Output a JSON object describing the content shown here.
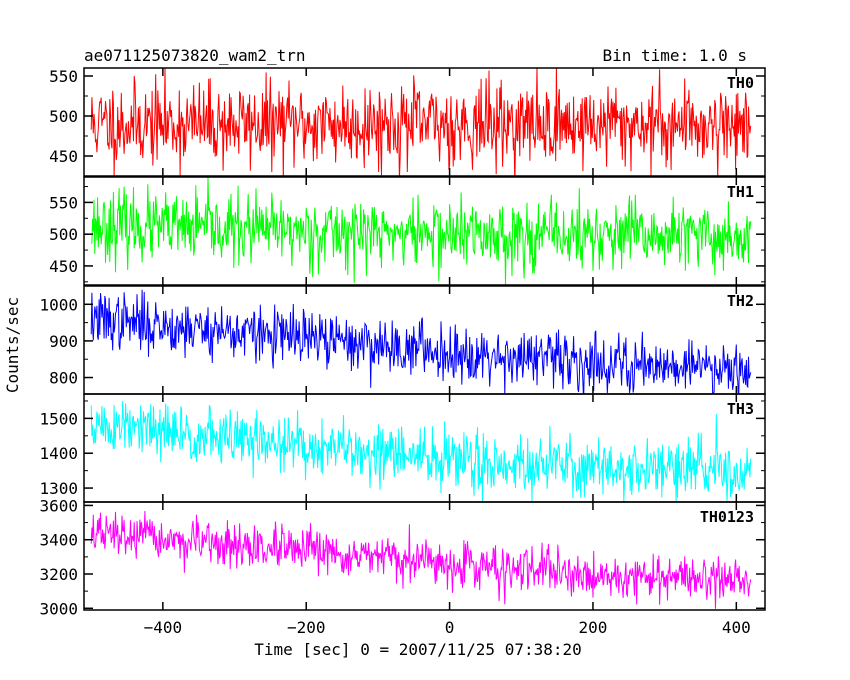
{
  "header": {
    "source_name": "ae071125073820_wam2_trn",
    "bin_time": "Bin time: 1.0 s"
  },
  "colors": {
    "TH0": "#ff0000",
    "TH1": "#00ff00",
    "TH2": "#0000ff",
    "TH3": "#00ffff",
    "TH0123": "#ff00ff"
  },
  "chart_data": {
    "type": "line",
    "xlabel": "Time [sec] 0 = 2007/11/25 07:38:20",
    "ylabel": "Counts/sec",
    "xlim": [
      -510,
      440
    ],
    "x_ticks": [
      -400,
      -200,
      0,
      200,
      400
    ],
    "x_tick_labels": [
      "−400",
      "−200",
      "0",
      "200",
      "400"
    ],
    "bin_time_s": 1.0,
    "x_range": [
      -500,
      420
    ],
    "panels": [
      {
        "name": "TH0",
        "ylim": [
          425,
          560
        ],
        "yticks": [
          450,
          500,
          550
        ],
        "trend": [
          [
            -500,
            490
          ],
          [
            420,
            490
          ]
        ],
        "noise_sigma": 26,
        "seed": 11
      },
      {
        "name": "TH1",
        "ylim": [
          420,
          590
        ],
        "yticks": [
          450,
          500,
          550
        ],
        "trend": [
          [
            -500,
            515
          ],
          [
            -400,
            510
          ],
          [
            0,
            500
          ],
          [
            420,
            495
          ]
        ],
        "noise_sigma": 27,
        "seed": 23
      },
      {
        "name": "TH2",
        "ylim": [
          755,
          1050
        ],
        "yticks": [
          800,
          900,
          1000
        ],
        "trend": [
          [
            -500,
            960
          ],
          [
            -300,
            925
          ],
          [
            0,
            870
          ],
          [
            200,
            840
          ],
          [
            420,
            830
          ]
        ],
        "noise_sigma": 38,
        "seed": 37
      },
      {
        "name": "TH3",
        "ylim": [
          1260,
          1570
        ],
        "yticks": [
          1300,
          1400,
          1500
        ],
        "trend": [
          [
            -500,
            1480
          ],
          [
            -300,
            1440
          ],
          [
            0,
            1380
          ],
          [
            200,
            1360
          ],
          [
            420,
            1350
          ]
        ],
        "noise_sigma": 42,
        "seed": 51
      },
      {
        "name": "TH0123",
        "ylim": [
          2990,
          3620
        ],
        "yticks": [
          3000,
          3200,
          3400,
          3600
        ],
        "trend": [
          [
            -500,
            3440
          ],
          [
            -300,
            3360
          ],
          [
            0,
            3260
          ],
          [
            200,
            3190
          ],
          [
            420,
            3170
          ]
        ],
        "noise_sigma": 62,
        "seed": 67
      }
    ]
  }
}
